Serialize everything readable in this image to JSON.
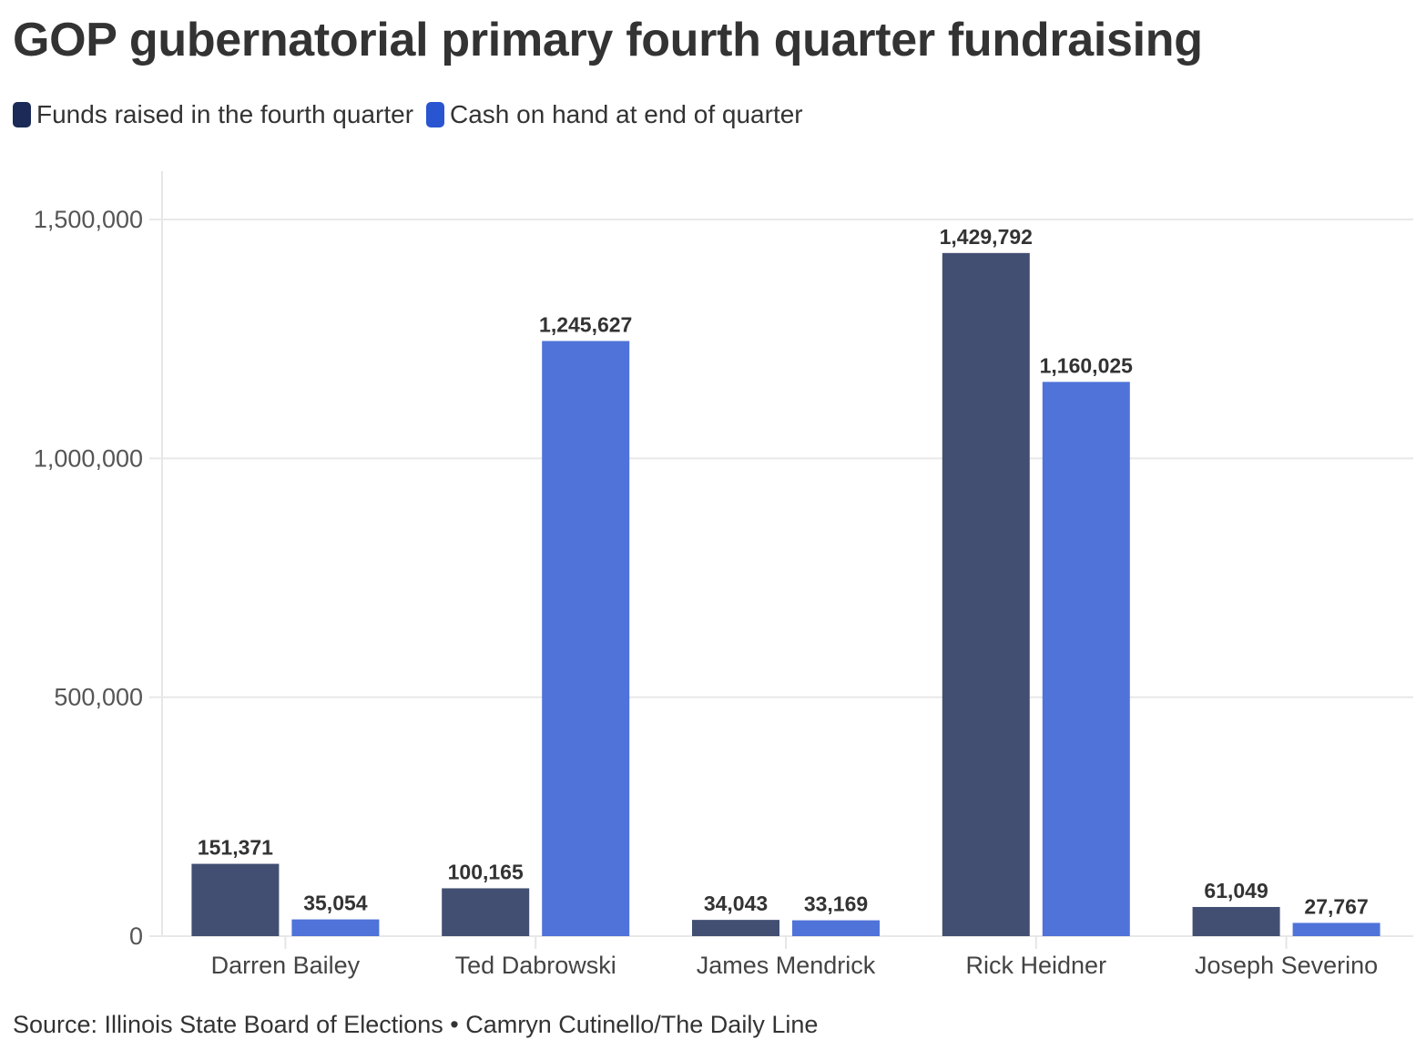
{
  "chart_data": {
    "type": "bar",
    "title": "GOP gubernatorial primary fourth quarter fundraising",
    "categories": [
      "Darren Bailey",
      "Ted Dabrowski",
      "James Mendrick",
      "Rick Heidner",
      "Joseph Severino"
    ],
    "series": [
      {
        "name": "Funds raised in the fourth quarter",
        "color": "#1b2a56",
        "bar_color": "#434f72",
        "values": [
          151371,
          100165,
          34043,
          1429792,
          61049
        ],
        "labels": [
          "151,371",
          "100,165",
          "34,043",
          "1,429,792",
          "61,049"
        ]
      },
      {
        "name": "Cash on hand at end of quarter",
        "color": "#2a55d0",
        "bar_color": "#4f73d8",
        "values": [
          35054,
          1245627,
          33169,
          1160025,
          27767
        ],
        "labels": [
          "35,054",
          "1,245,627",
          "33,169",
          "1,160,025",
          "27,767"
        ]
      }
    ],
    "yticks": [
      0,
      500000,
      1000000,
      1500000
    ],
    "ytick_labels": [
      "0",
      "500,000",
      "1,000,000",
      "1,500,000"
    ],
    "ylim": [
      0,
      1500000
    ],
    "xlabel": "",
    "ylabel": "",
    "grid": true,
    "legend_position": "top-left",
    "source": "Source: Illinois State Board of Elections • Camryn Cutinello/The Daily Line"
  }
}
